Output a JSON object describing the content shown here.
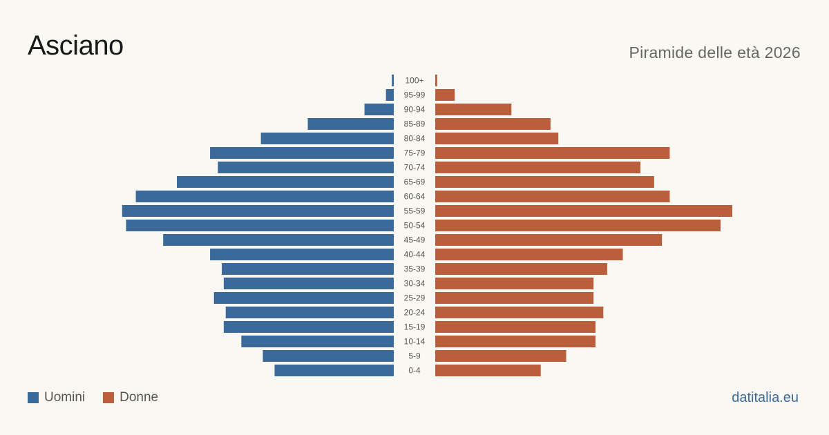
{
  "header": {
    "title": "Asciano",
    "subtitle": "Piramide delle età 2026"
  },
  "legend": {
    "men_label": "Uomini",
    "women_label": "Donne"
  },
  "footer": {
    "brand": "datitalia.eu"
  },
  "colors": {
    "men": "#3b6a9a",
    "women": "#bb5e3c",
    "background": "#faf8f3",
    "label": "#555555"
  },
  "chart_data": {
    "type": "bar",
    "orientation": "horizontal-population-pyramid",
    "categories": [
      "100+",
      "95-99",
      "90-94",
      "85-89",
      "80-84",
      "75-79",
      "70-74",
      "65-69",
      "60-64",
      "55-59",
      "50-54",
      "45-49",
      "40-44",
      "35-39",
      "30-34",
      "25-29",
      "20-24",
      "15-19",
      "10-14",
      "5-9",
      "0-4"
    ],
    "series": [
      {
        "name": "Uomini",
        "values": [
          1,
          4,
          15,
          44,
          68,
          94,
          90,
          111,
          132,
          139,
          137,
          118,
          94,
          88,
          87,
          92,
          86,
          87,
          78,
          67,
          61
        ]
      },
      {
        "name": "Donne",
        "values": [
          1,
          10,
          39,
          59,
          63,
          120,
          105,
          112,
          120,
          152,
          146,
          116,
          96,
          88,
          81,
          81,
          86,
          82,
          82,
          67,
          54
        ]
      }
    ],
    "grid": false,
    "legend_position": "bottom-left"
  }
}
